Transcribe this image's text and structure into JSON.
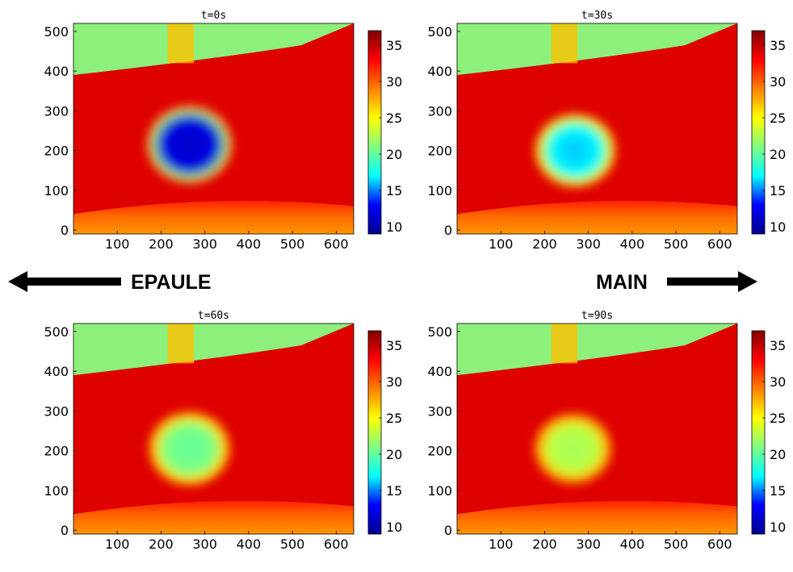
{
  "chart_data": [
    {
      "type": "heatmap",
      "title": "t=0s",
      "xlim": [
        0,
        640
      ],
      "ylim": [
        -10,
        520
      ],
      "xticks": [
        100,
        200,
        300,
        400,
        500,
        600
      ],
      "yticks": [
        0,
        100,
        200,
        300,
        400,
        500
      ],
      "colorbar": {
        "ticks": [
          10,
          15,
          20,
          25,
          30,
          35
        ],
        "range": [
          9,
          37
        ]
      },
      "cold_spot": {
        "center": [
          265,
          215
        ],
        "radius": 100,
        "value": 11,
        "halo_value": 21
      },
      "background_value": 34
    },
    {
      "type": "heatmap",
      "title": "t=30s",
      "xlim": [
        0,
        640
      ],
      "ylim": [
        -10,
        520
      ],
      "xticks": [
        100,
        200,
        300,
        400,
        500,
        600
      ],
      "yticks": [
        0,
        100,
        200,
        300,
        400,
        500
      ],
      "colorbar": {
        "ticks": [
          10,
          15,
          20,
          25,
          30,
          35
        ],
        "range": [
          9,
          37
        ]
      },
      "cold_spot": {
        "center": [
          270,
          200
        ],
        "radius": 95,
        "value": 16,
        "halo_value": 24
      },
      "background_value": 34
    },
    {
      "type": "heatmap",
      "title": "t=60s",
      "xlim": [
        0,
        640
      ],
      "ylim": [
        -10,
        520
      ],
      "xticks": [
        100,
        200,
        300,
        400,
        500,
        600
      ],
      "yticks": [
        0,
        100,
        200,
        300,
        400,
        500
      ],
      "colorbar": {
        "ticks": [
          10,
          15,
          20,
          25,
          30,
          35
        ],
        "range": [
          9,
          37
        ]
      },
      "cold_spot": {
        "center": [
          265,
          205
        ],
        "radius": 95,
        "value": 20,
        "halo_value": 26
      },
      "background_value": 34
    },
    {
      "type": "heatmap",
      "title": "t=90s",
      "xlim": [
        0,
        640
      ],
      "ylim": [
        -10,
        520
      ],
      "xticks": [
        100,
        200,
        300,
        400,
        500,
        600
      ],
      "yticks": [
        0,
        100,
        200,
        300,
        400,
        500
      ],
      "colorbar": {
        "ticks": [
          10,
          15,
          20,
          25,
          30,
          35
        ],
        "range": [
          9,
          37
        ]
      },
      "cold_spot": {
        "center": [
          265,
          205
        ],
        "radius": 90,
        "value": 22,
        "halo_value": 27
      },
      "background_value": 34
    }
  ],
  "arrows": {
    "left": {
      "label": "EPAULE",
      "direction": "left"
    },
    "right": {
      "label": "MAIN",
      "direction": "right"
    }
  },
  "colors": {
    "colormap": [
      "#00008f",
      "#0000ff",
      "#00ffff",
      "#80ff80",
      "#ffff00",
      "#ff8000",
      "#ff0000",
      "#800000"
    ],
    "background_band": "#8cf07a",
    "arrow": "#000000"
  }
}
